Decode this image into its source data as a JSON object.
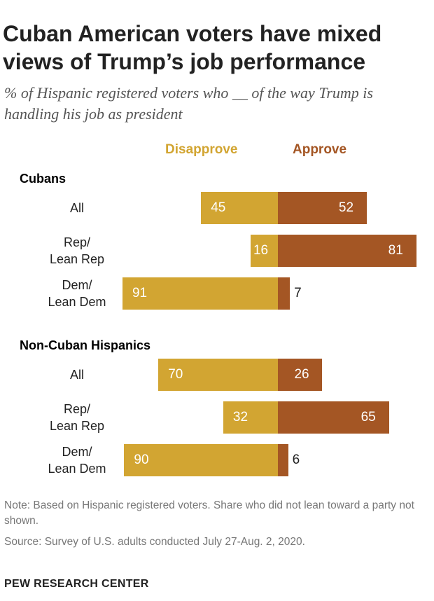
{
  "title": "Cuban American voters have mixed views of Trump’s job performance",
  "subtitle": "% of Hispanic registered voters who __ of the way Trump is handling his job as president",
  "note": "Note: Based on Hispanic registered voters. Share who did not lean toward a party not shown.",
  "source": "Source: Survey of U.S. adults conducted July 27-Aug. 2, 2020.",
  "brand": "PEW RESEARCH CENTER",
  "chart_data": {
    "type": "bar",
    "orientation": "horizontal-diverging",
    "legend": [
      "Disapprove",
      "Approve"
    ],
    "colors": {
      "Disapprove": "#D2A532",
      "Approve": "#A45624"
    },
    "groups": [
      {
        "name": "Cubans",
        "rows": [
          {
            "label": "All",
            "disapprove": 45,
            "approve": 52
          },
          {
            "label": "Rep/\nLean Rep",
            "disapprove": 16,
            "approve": 81
          },
          {
            "label": "Dem/\nLean Dem",
            "disapprove": 91,
            "approve": 7
          }
        ]
      },
      {
        "name": "Non-Cuban Hispanics",
        "rows": [
          {
            "label": "All",
            "disapprove": 70,
            "approve": 26
          },
          {
            "label": "Rep/\nLean Rep",
            "disapprove": 32,
            "approve": 65
          },
          {
            "label": "Dem/\nLean Dem",
            "disapprove": 90,
            "approve": 6
          }
        ]
      }
    ]
  }
}
